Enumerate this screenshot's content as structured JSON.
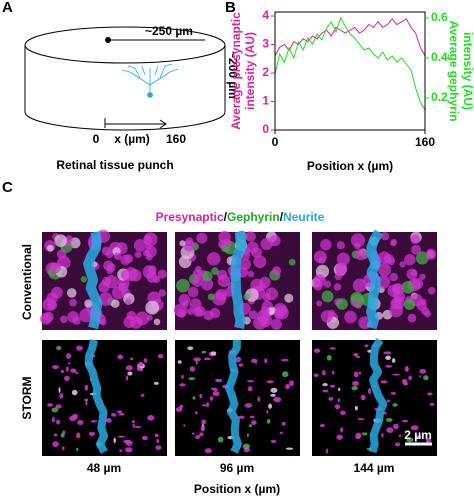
{
  "panel_labels": [
    "A",
    "B",
    "C"
  ],
  "diagram": {
    "width_label": "~250 µm",
    "depth_label": "~200 µm",
    "axis_start": "0",
    "axis_label": "x (µm)",
    "axis_end": "160",
    "caption": "Retinal tissue punch"
  },
  "chart_data": {
    "type": "line",
    "xlabel": "Position x (µm)",
    "ylabel": [
      "Average presynaptic",
      "intensity (AU)"
    ],
    "y2label": [
      "Average gephyrin",
      "intensity (AU)"
    ],
    "x": [
      0,
      5,
      10,
      15,
      20,
      25,
      30,
      35,
      40,
      45,
      50,
      55,
      60,
      65,
      70,
      75,
      80,
      85,
      90,
      95,
      100,
      105,
      110,
      115,
      120,
      125,
      130,
      135,
      140,
      145,
      150,
      155,
      160
    ],
    "series": [
      {
        "name": "Presynaptic",
        "color": "#d6249f",
        "values": [
          2.6,
          2.9,
          3.0,
          2.8,
          3.1,
          3.0,
          3.2,
          3.1,
          3.3,
          3.2,
          3.4,
          3.5,
          3.3,
          3.6,
          3.5,
          3.4,
          3.5,
          3.6,
          3.4,
          3.5,
          3.7,
          3.6,
          3.8,
          3.6,
          3.7,
          3.9,
          3.7,
          3.8,
          3.9,
          3.6,
          3.4,
          2.9,
          2.6
        ]
      },
      {
        "name": "Gephyrin",
        "color": "#22dd22",
        "axis": "y2",
        "values": [
          0.32,
          0.42,
          0.38,
          0.45,
          0.4,
          0.48,
          0.44,
          0.5,
          0.47,
          0.52,
          0.49,
          0.55,
          0.58,
          0.53,
          0.6,
          0.56,
          0.52,
          0.5,
          0.47,
          0.44,
          0.45,
          0.42,
          0.4,
          0.43,
          0.39,
          0.41,
          0.38,
          0.4,
          0.37,
          0.34,
          0.25,
          0.18,
          0.14
        ]
      }
    ],
    "xlim": [
      0,
      160
    ],
    "xticks": [
      0,
      160
    ],
    "ylim": [
      0,
      4.14
    ],
    "yticks": [
      0,
      1,
      2,
      3,
      4
    ],
    "y2lim": [
      0.04,
      0.63
    ],
    "y2ticks": [
      0.2,
      0.4,
      0.6
    ]
  },
  "images": {
    "channels": [
      "Presynaptic",
      "/",
      "Gephyrin",
      "/",
      "Neurite"
    ],
    "rows": [
      "Conventional",
      "STORM"
    ],
    "columns": [
      "48 µm",
      "96 µm",
      "144 µm"
    ],
    "xlabel": "Position x (µm)",
    "scale_bar": "2 µm"
  }
}
